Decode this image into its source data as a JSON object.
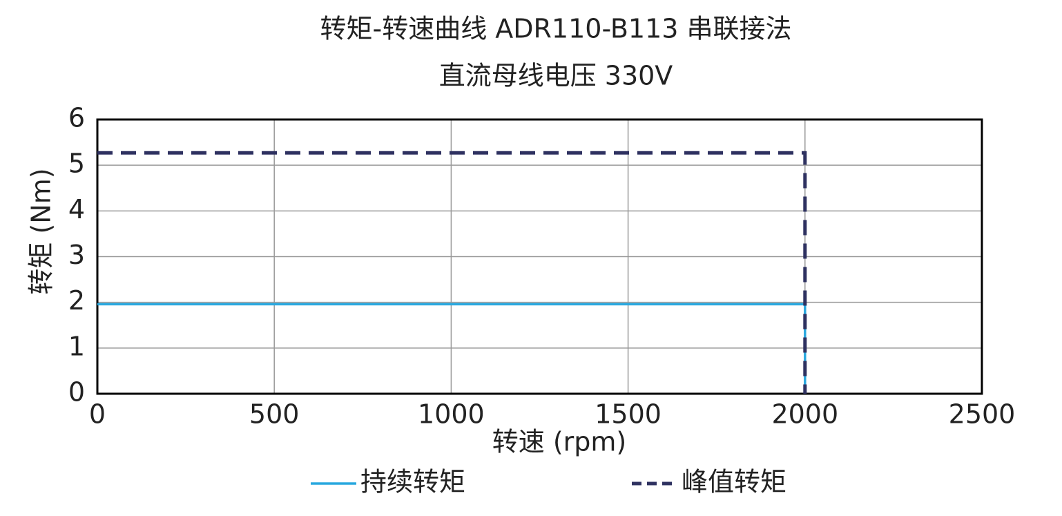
{
  "chart_data": {
    "type": "line",
    "title": "转矩-转速曲线 ADR110-B113 串联接法",
    "subtitle": "直流母线电压 330V",
    "xlabel": "转速 (rpm)",
    "ylabel": "转矩 (Nm)",
    "x": [
      0,
      2000,
      2000
    ],
    "series": [
      {
        "name": "持续转矩",
        "color": "#29a8df",
        "linestyle": "solid",
        "values": [
          1.96,
          1.96,
          0
        ]
      },
      {
        "name": "峰值转矩",
        "color": "#2e3160",
        "linestyle": "dashed",
        "values": [
          5.27,
          5.27,
          0
        ]
      }
    ],
    "xlim": [
      0,
      2500
    ],
    "xticks": [
      0,
      500,
      1000,
      1500,
      2000,
      2500
    ],
    "ylim": [
      0,
      6
    ],
    "yticks": [
      0,
      1,
      2,
      3,
      4,
      5,
      6
    ],
    "grid": true,
    "legend": "bottom"
  }
}
